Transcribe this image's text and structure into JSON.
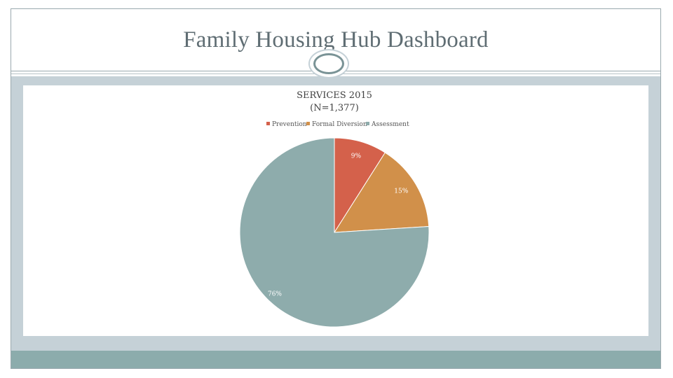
{
  "page": {
    "title": "Family Housing Hub Dashboard"
  },
  "colors": {
    "frame": "#9aa9ae",
    "band": "#c5d1d7",
    "bottom_bar": "#8cacac",
    "title": "#5f6d73"
  },
  "chart_data": {
    "type": "pie",
    "title": "SERVICES 2015",
    "subtitle": "(N=1,377)",
    "legend_position": "top",
    "slices": [
      {
        "name": "Prevention",
        "value": 9,
        "label": "9%",
        "color": "#d4614b"
      },
      {
        "name": "Formal Diversion",
        "value": 15,
        "label": "15%",
        "color": "#d1904a"
      },
      {
        "name": "Assessment",
        "value": 76,
        "label": "76%",
        "color": "#8eacac"
      }
    ]
  }
}
